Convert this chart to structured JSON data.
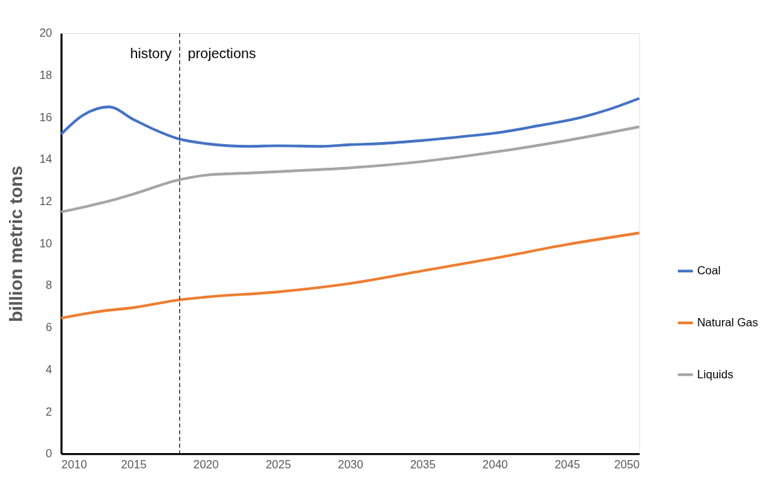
{
  "chart_data": {
    "type": "line",
    "ylabel": "billion metric tons",
    "xlim": [
      2010,
      2050
    ],
    "xticks": [
      2010,
      2015,
      2020,
      2025,
      2030,
      2035,
      2040,
      2045,
      2050
    ],
    "ylim": [
      0,
      20
    ],
    "yticks": [
      0,
      2,
      4,
      6,
      8,
      10,
      12,
      14,
      16,
      18,
      20
    ],
    "grid": false,
    "legend": "right",
    "line_style": "solid",
    "marker": "none",
    "ref_lines": [
      {
        "axis": "x",
        "value": 2018.2,
        "line_style": "dashed",
        "color": "#000000"
      }
    ],
    "annotations": [
      {
        "text": "history",
        "x": 2018.2,
        "y": 19
      },
      {
        "text": "projections",
        "x": 2018.2,
        "y": 19
      }
    ],
    "series": [
      {
        "name": "Coal",
        "color": "#4472c4",
        "x": [
          2010,
          2011.5,
          2013.3,
          2015,
          2016.5,
          2018,
          2020,
          2023,
          2025,
          2028,
          2030,
          2032,
          2035,
          2038,
          2040,
          2043,
          2046,
          2048,
          2050
        ],
        "values": [
          15.2,
          16.1,
          16.5,
          15.9,
          15.4,
          15.0,
          14.75,
          14.62,
          14.65,
          14.62,
          14.7,
          14.75,
          14.9,
          15.1,
          15.25,
          15.6,
          16.0,
          16.4,
          16.9
        ]
      },
      {
        "name": "Natural Gas",
        "color": "#ed7d31",
        "x": [
          2010,
          2012,
          2013,
          2015,
          2018,
          2020,
          2025,
          2030,
          2035,
          2040,
          2045,
          2050
        ],
        "values": [
          6.45,
          6.7,
          6.8,
          6.95,
          7.3,
          7.45,
          7.7,
          8.1,
          8.7,
          9.3,
          9.95,
          10.5
        ]
      },
      {
        "name": "Liquids",
        "color": "#a5a5a5",
        "x": [
          2010,
          2012,
          2013.5,
          2015,
          2018,
          2020,
          2023,
          2026,
          2030,
          2035,
          2040,
          2045,
          2050
        ],
        "values": [
          11.5,
          11.8,
          12.05,
          12.35,
          13.0,
          13.25,
          13.35,
          13.45,
          13.6,
          13.9,
          14.35,
          14.9,
          15.55
        ]
      }
    ]
  }
}
